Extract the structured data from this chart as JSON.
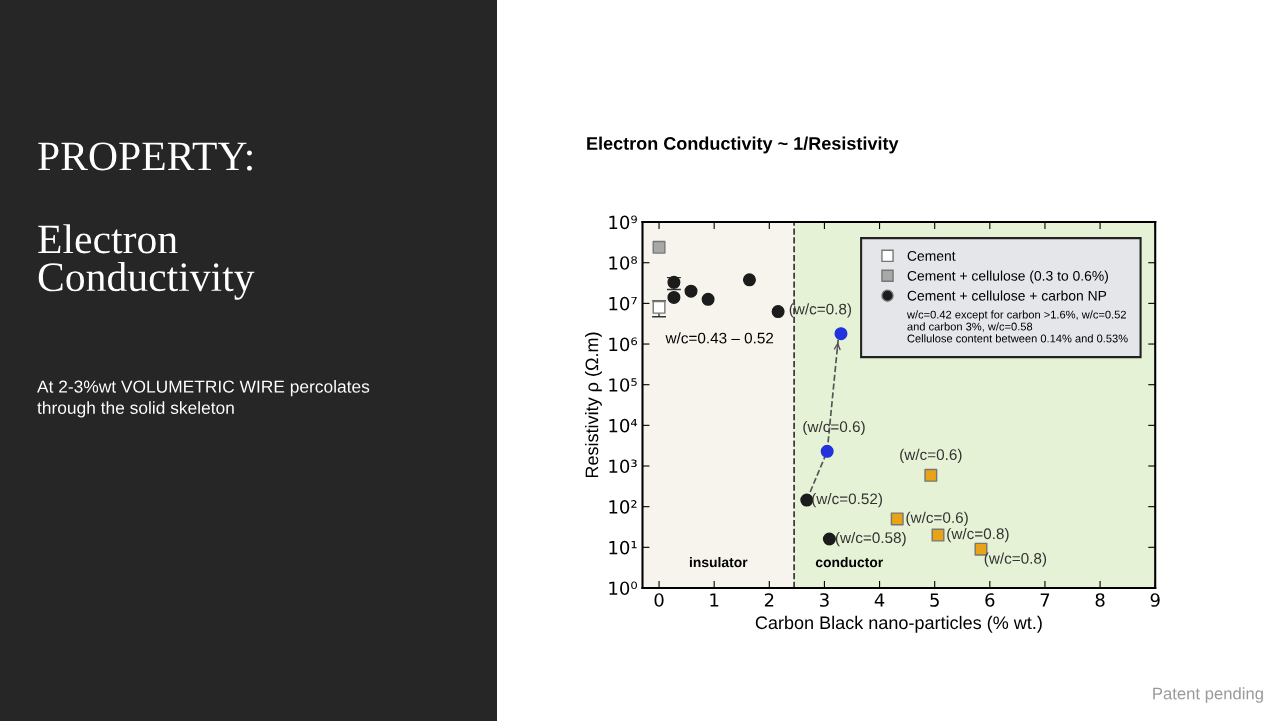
{
  "chart_data": {
    "type": "scatter",
    "title": "Electron Conductivity ~ 1/Resistivity",
    "xlabel": "Carbon Black nano-particles (% wt.)",
    "ylabel": "Resistivity ρ (Ω.m)",
    "xlim": [
      -0.3,
      9
    ],
    "xticks": [
      0,
      1,
      2,
      3,
      4,
      5,
      6,
      7,
      8,
      9
    ],
    "ylim": [
      1,
      1000000000
    ],
    "yticks": [
      {
        "value": 1,
        "label": "10⁰"
      },
      {
        "value": 10,
        "label": "10¹"
      },
      {
        "value": 100,
        "label": "10²"
      },
      {
        "value": 1000,
        "label": "10³"
      },
      {
        "value": 10000,
        "label": "10⁴"
      },
      {
        "value": 100000,
        "label": "10⁵"
      },
      {
        "value": 1000000,
        "label": "10⁶"
      },
      {
        "value": 10000000,
        "label": "10⁷"
      },
      {
        "value": 100000000,
        "label": "10⁸"
      },
      {
        "value": 1000000000,
        "label": "10⁹"
      }
    ],
    "log": "y",
    "grid": false,
    "legend": "top right",
    "series": [
      {
        "name": "Cement",
        "color": "#ffffff",
        "marker": "square",
        "x": [
          0
        ],
        "values": [
          8000000
        ],
        "errors": [
          [
            4700000,
            11500000
          ]
        ]
      },
      {
        "name": "Cement + cellulose (0.3 to 0.6%)",
        "color": "#a8a8a8",
        "marker": "square",
        "x": [
          0
        ],
        "values": [
          240000000
        ]
      },
      {
        "name": "Cement + cellulose + carbon NP",
        "color": "#1c1c1c",
        "marker": "circle",
        "x": [
          0.27,
          0.27,
          0.58,
          0.89,
          1.64,
          2.16,
          2.68,
          3.09
        ],
        "values": [
          33000000,
          14000000,
          20000000,
          12600000,
          38000000,
          6300000,
          145,
          16
        ],
        "errors": [
          [
            22000000,
            43000000
          ],
          null,
          null,
          null,
          null,
          null,
          null,
          null
        ]
      },
      {
        "color": "#2233dd",
        "marker": "circle",
        "x": [
          3.05,
          3.3
        ],
        "values": [
          2300,
          1800000
        ]
      },
      {
        "color": "#e8a317",
        "marker": "square",
        "x": [
          4.93,
          4.32,
          5.06,
          5.84
        ],
        "values": [
          590,
          50,
          20,
          9
        ]
      },
      {
        "type": "line",
        "color": "#555555",
        "line_style": "dashed",
        "marker": "none",
        "x": [
          2.68,
          3.05,
          3.25
        ],
        "values": [
          145,
          2300,
          1300000
        ]
      }
    ],
    "ref_lines": [
      {
        "axis": "x",
        "value": 2.45,
        "color": "#333333",
        "line_style": "dashed"
      }
    ],
    "bands": [
      {
        "axis": "x",
        "from": -0.3,
        "to": 2.45,
        "label": "insulator",
        "color": "#f6f4ec"
      },
      {
        "axis": "x",
        "from": 2.45,
        "to": 9,
        "label": "conductor",
        "color": "#e6f2d6"
      }
    ],
    "annotations": [
      "PROPERTY:",
      "Electron Conductivity",
      "At 2-3%wt VOLUMETRIC WIRE percolates through the solid skeleton",
      "w/c=0.43 – 0.52",
      "w/c=0.42 except for carbon >1.6%, w/c=0.52\nand carbon 3%, w/c=0.58\nCellulose content between 0.14% and 0.53%",
      "Patent pending",
      {
        "text": "(w/c=0.8)",
        "x": 3.3,
        "y": 1800000
      },
      {
        "text": "(w/c=0.6)",
        "x": 3.05,
        "y": 2300
      },
      {
        "text": "(w/c=0.52)",
        "x": 2.68,
        "y": 145
      },
      {
        "text": "(w/c=0.58)",
        "x": 3.09,
        "y": 16
      },
      {
        "text": "(w/c=0.6)",
        "x": 4.93,
        "y": 590
      },
      {
        "text": "(w/c=0.6)",
        "x": 4.32,
        "y": 50
      },
      {
        "text": "(w/c=0.8)",
        "x": 5.06,
        "y": 20
      },
      {
        "text": "(w/c=0.8)",
        "x": 5.84,
        "y": 9
      }
    ]
  }
}
